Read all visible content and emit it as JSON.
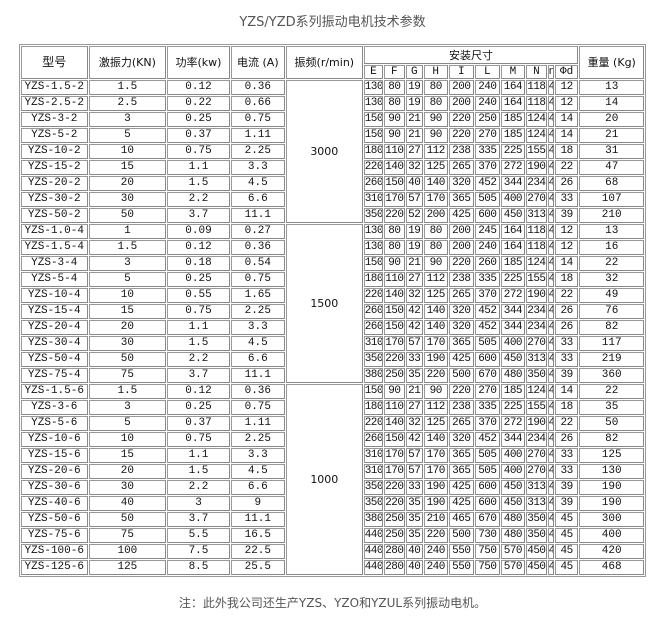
{
  "title": "YZS/YZD系列振动电机技术参数",
  "table": {
    "headers": {
      "model": "型号",
      "force": "激振力(KN)",
      "power": "功率(kw)",
      "current": "电流 (A)",
      "frequency": "振频(r/min)",
      "install": "安装尺寸",
      "dims": [
        "E",
        "F",
        "G",
        "H",
        "I",
        "L",
        "M",
        "N",
        "n",
        "Φd"
      ],
      "weight": "重量 (Kg)"
    },
    "groups": [
      {
        "frequency": "3000",
        "rows": [
          [
            "YZS-1.5-2",
            "1.5",
            "0.12",
            "0.36",
            "130",
            "80",
            "19",
            "80",
            "200",
            "240",
            "164",
            "118",
            "4",
            "12",
            "13"
          ],
          [
            "YZS-2.5-2",
            "2.5",
            "0.22",
            "0.66",
            "130",
            "80",
            "19",
            "80",
            "200",
            "240",
            "164",
            "118",
            "4",
            "12",
            "14"
          ],
          [
            "YZS-3-2",
            "3",
            "0.25",
            "0.75",
            "150",
            "90",
            "21",
            "90",
            "220",
            "250",
            "185",
            "124",
            "4",
            "14",
            "20"
          ],
          [
            "YZS-5-2",
            "5",
            "0.37",
            "1.11",
            "150",
            "90",
            "21",
            "90",
            "220",
            "270",
            "185",
            "124",
            "4",
            "14",
            "21"
          ],
          [
            "YZS-10-2",
            "10",
            "0.75",
            "2.25",
            "180",
            "110",
            "27",
            "112",
            "238",
            "335",
            "225",
            "155",
            "4",
            "18",
            "31"
          ],
          [
            "YZS-15-2",
            "15",
            "1.1",
            "3.3",
            "220",
            "140",
            "32",
            "125",
            "265",
            "370",
            "272",
            "190",
            "4",
            "22",
            "47"
          ],
          [
            "YZS-20-2",
            "20",
            "1.5",
            "4.5",
            "260",
            "150",
            "40",
            "140",
            "320",
            "452",
            "344",
            "234",
            "4",
            "26",
            "68"
          ],
          [
            "YZS-30-2",
            "30",
            "2.2",
            "6.6",
            "310",
            "170",
            "57",
            "170",
            "365",
            "505",
            "400",
            "270",
            "4",
            "33",
            "107"
          ],
          [
            "YZS-50-2",
            "50",
            "3.7",
            "11.1",
            "350",
            "220",
            "52",
            "200",
            "425",
            "600",
            "450",
            "313",
            "4",
            "39",
            "210"
          ]
        ]
      },
      {
        "frequency": "1500",
        "rows": [
          [
            "YZS-1.0-4",
            "1",
            "0.09",
            "0.27",
            "130",
            "80",
            "19",
            "80",
            "200",
            "245",
            "164",
            "118",
            "4",
            "12",
            "13"
          ],
          [
            "YZS-1.5-4",
            "1.5",
            "0.12",
            "0.36",
            "130",
            "80",
            "19",
            "80",
            "200",
            "240",
            "164",
            "118",
            "4",
            "12",
            "16"
          ],
          [
            "YZS-3-4",
            "3",
            "0.18",
            "0.54",
            "150",
            "90",
            "21",
            "90",
            "220",
            "260",
            "185",
            "124",
            "4",
            "14",
            "22"
          ],
          [
            "YZS-5-4",
            "5",
            "0.25",
            "0.75",
            "180",
            "110",
            "27",
            "112",
            "238",
            "335",
            "225",
            "155",
            "4",
            "18",
            "32"
          ],
          [
            "YZS-10-4",
            "10",
            "0.55",
            "1.65",
            "220",
            "140",
            "32",
            "125",
            "265",
            "370",
            "272",
            "190",
            "4",
            "22",
            "49"
          ],
          [
            "YZS-15-4",
            "15",
            "0.75",
            "2.25",
            "260",
            "150",
            "42",
            "140",
            "320",
            "452",
            "344",
            "234",
            "4",
            "26",
            "76"
          ],
          [
            "YZS-20-4",
            "20",
            "1.1",
            "3.3",
            "260",
            "150",
            "42",
            "140",
            "320",
            "452",
            "344",
            "234",
            "4",
            "26",
            "82"
          ],
          [
            "YZS-30-4",
            "30",
            "1.5",
            "4.5",
            "310",
            "170",
            "57",
            "170",
            "365",
            "505",
            "400",
            "270",
            "4",
            "33",
            "117"
          ],
          [
            "YZS-50-4",
            "50",
            "2.2",
            "6.6",
            "350",
            "220",
            "33",
            "190",
            "425",
            "600",
            "450",
            "313",
            "4",
            "33",
            "219"
          ],
          [
            "YZS-75-4",
            "75",
            "3.7",
            "11.1",
            "380",
            "250",
            "35",
            "220",
            "500",
            "670",
            "480",
            "350",
            "4",
            "39",
            "360"
          ]
        ]
      },
      {
        "frequency": "1000",
        "rows": [
          [
            "YZS-1.5-6",
            "1.5",
            "0.12",
            "0.36",
            "150",
            "90",
            "21",
            "90",
            "220",
            "270",
            "185",
            "124",
            "4",
            "14",
            "22"
          ],
          [
            "YZS-3-6",
            "3",
            "0.25",
            "0.75",
            "180",
            "110",
            "27",
            "112",
            "238",
            "335",
            "225",
            "155",
            "4",
            "18",
            "35"
          ],
          [
            "YZS-5-6",
            "5",
            "0.37",
            "1.11",
            "220",
            "140",
            "32",
            "125",
            "265",
            "370",
            "272",
            "190",
            "4",
            "22",
            "50"
          ],
          [
            "YZS-10-6",
            "10",
            "0.75",
            "2.25",
            "260",
            "150",
            "42",
            "140",
            "320",
            "452",
            "344",
            "234",
            "4",
            "26",
            "82"
          ],
          [
            "YZS-15-6",
            "15",
            "1.1",
            "3.3",
            "310",
            "170",
            "57",
            "170",
            "365",
            "505",
            "400",
            "270",
            "4",
            "33",
            "125"
          ],
          [
            "YZS-20-6",
            "20",
            "1.5",
            "4.5",
            "310",
            "170",
            "57",
            "170",
            "365",
            "505",
            "400",
            "270",
            "4",
            "33",
            "130"
          ],
          [
            "YZS-30-6",
            "30",
            "2.2",
            "6.6",
            "350",
            "220",
            "33",
            "190",
            "425",
            "600",
            "450",
            "313",
            "4",
            "39",
            "190"
          ],
          [
            "YZS-40-6",
            "40",
            "3",
            "9",
            "350",
            "220",
            "35",
            "190",
            "425",
            "600",
            "450",
            "313",
            "4",
            "39",
            "190"
          ],
          [
            "YZS-50-6",
            "50",
            "3.7",
            "11.1",
            "380",
            "250",
            "35",
            "210",
            "465",
            "670",
            "480",
            "350",
            "4",
            "45",
            "300"
          ],
          [
            "YZS-75-6",
            "75",
            "5.5",
            "16.5",
            "440",
            "250",
            "35",
            "220",
            "500",
            "730",
            "480",
            "350",
            "4",
            "45",
            "400"
          ],
          [
            "YZS-100-6",
            "100",
            "7.5",
            "22.5",
            "440",
            "280",
            "40",
            "240",
            "550",
            "750",
            "570",
            "450",
            "4",
            "45",
            "420"
          ],
          [
            "YZS-125-6",
            "125",
            "8.5",
            "25.5",
            "440",
            "280",
            "40",
            "240",
            "550",
            "750",
            "570",
            "450",
            "4",
            "45",
            "468"
          ]
        ]
      }
    ]
  },
  "note": "注：此外我公司还生产YZS、YZO和YZUL系列振动电机。"
}
